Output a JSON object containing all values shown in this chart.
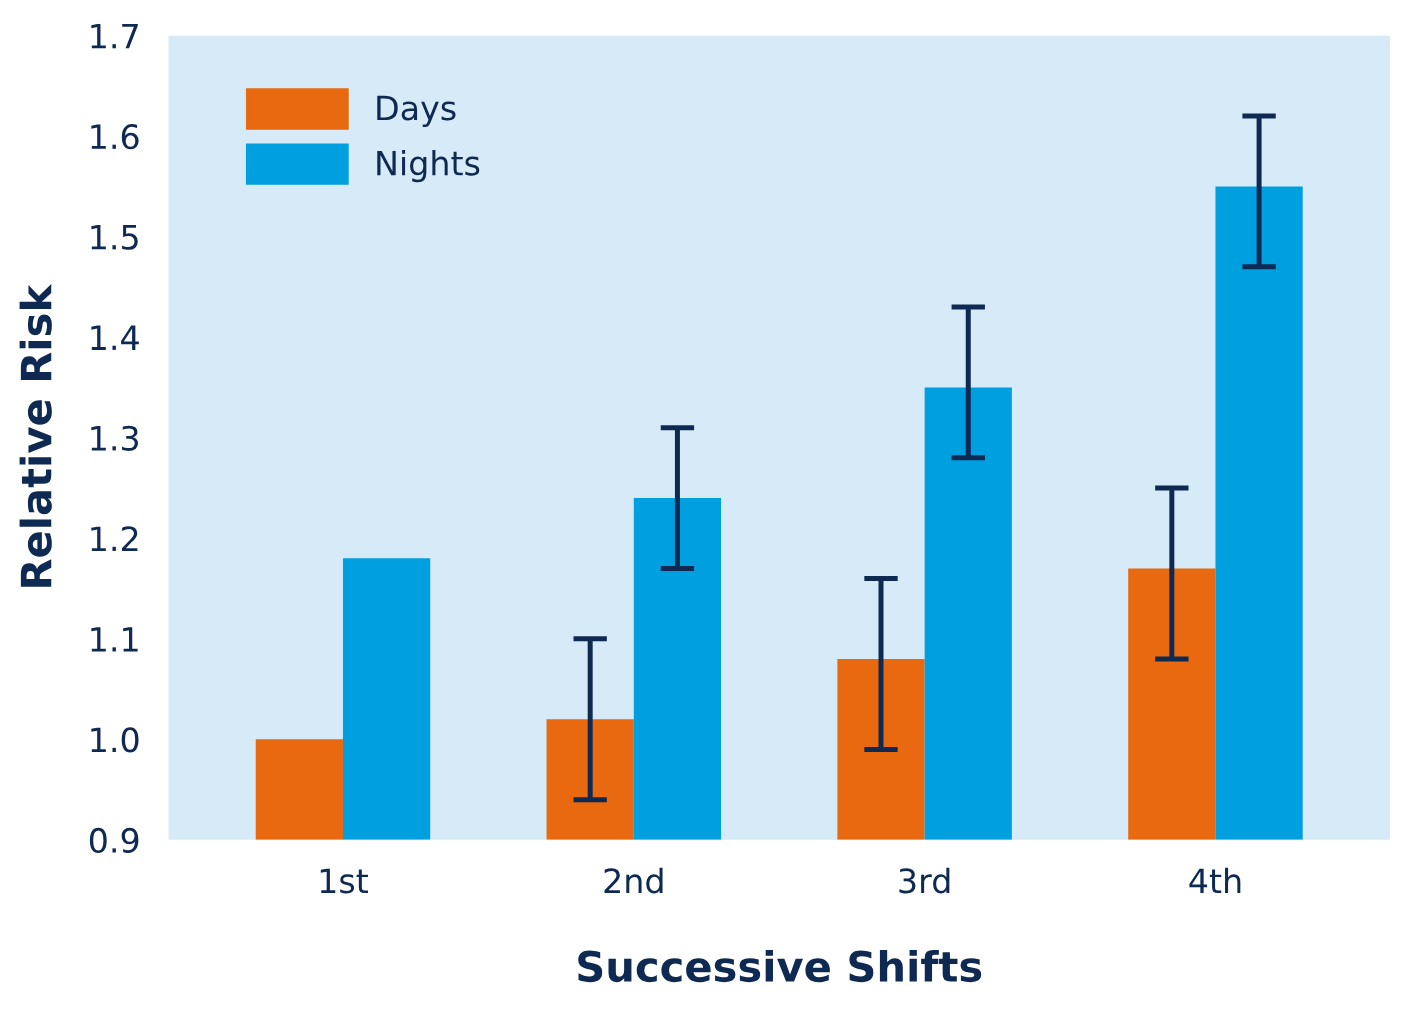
{
  "chart_data": {
    "type": "bar",
    "xlabel": "Successive Shifts",
    "ylabel": "Relative Risk",
    "categories": [
      "1st",
      "2nd",
      "3rd",
      "4th"
    ],
    "series": [
      {
        "name": "Days",
        "color": "#e8690f",
        "values": [
          1.0,
          1.02,
          1.08,
          1.17
        ],
        "errors": [
          null,
          [
            0.94,
            1.1
          ],
          [
            0.99,
            1.16
          ],
          [
            1.08,
            1.25
          ]
        ]
      },
      {
        "name": "Nights",
        "color": "#009fe0",
        "values": [
          1.18,
          1.24,
          1.35,
          1.55
        ],
        "errors": [
          null,
          [
            1.17,
            1.31
          ],
          [
            1.28,
            1.43
          ],
          [
            1.47,
            1.62
          ]
        ]
      }
    ],
    "ylim": [
      0.9,
      1.7
    ],
    "yticks": [
      0.9,
      {
        "value": 1,
        "label": "1.0"
      },
      1.1,
      1.2,
      1.3,
      1.4,
      1.5,
      1.6,
      1.7
    ],
    "grid": false,
    "legend": "top left"
  }
}
